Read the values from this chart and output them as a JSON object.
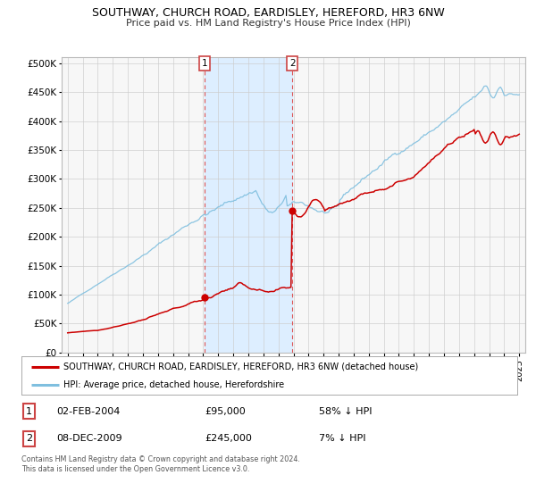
{
  "title": "SOUTHWAY, CHURCH ROAD, EARDISLEY, HEREFORD, HR3 6NW",
  "subtitle": "Price paid vs. HM Land Registry's House Price Index (HPI)",
  "hpi_color": "#7fbfdf",
  "price_color": "#cc0000",
  "bg_color": "#ffffff",
  "shade_color": "#ddeeff",
  "transaction1_date": 2004.08,
  "transaction1_price": 95000,
  "transaction2_date": 2009.92,
  "transaction2_price": 245000,
  "legend_property": "SOUTHWAY, CHURCH ROAD, EARDISLEY, HEREFORD, HR3 6NW (detached house)",
  "legend_hpi": "HPI: Average price, detached house, Herefordshire",
  "footnote": "Contains HM Land Registry data © Crown copyright and database right 2024.\nThis data is licensed under the Open Government Licence v3.0.",
  "table_row1": [
    "1",
    "02-FEB-2004",
    "£95,000",
    "58% ↓ HPI"
  ],
  "table_row2": [
    "2",
    "08-DEC-2009",
    "£245,000",
    "7% ↓ HPI"
  ],
  "yticks": [
    0,
    50000,
    100000,
    150000,
    200000,
    250000,
    300000,
    350000,
    400000,
    450000,
    500000
  ],
  "ytick_labels": [
    "£0",
    "£50K",
    "£100K",
    "£150K",
    "£200K",
    "£250K",
    "£300K",
    "£350K",
    "£400K",
    "£450K",
    "£500K"
  ]
}
